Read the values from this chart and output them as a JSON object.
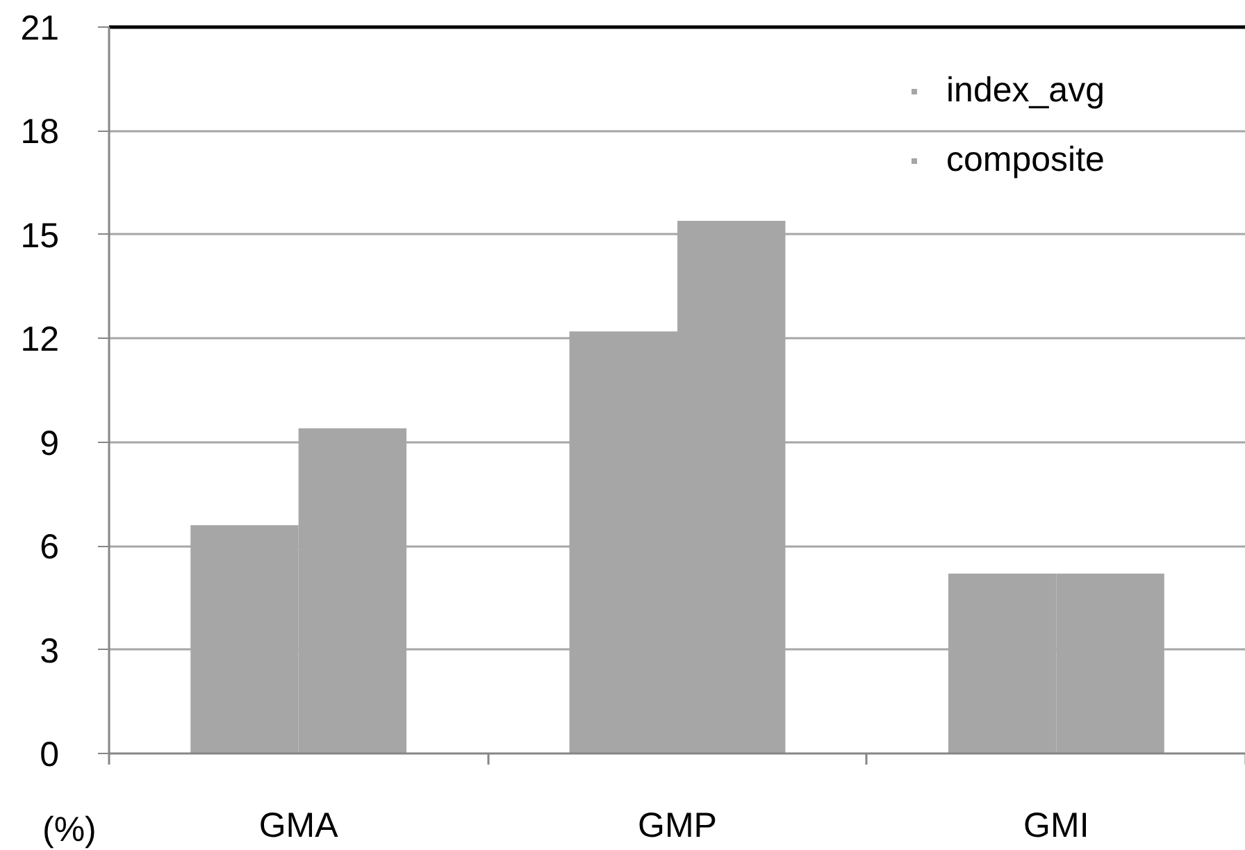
{
  "chart_data": {
    "type": "bar",
    "ylabel": "(%)",
    "categories": [
      "GMA",
      "GMP",
      "GMI"
    ],
    "series": [
      {
        "name": "index_avg",
        "color": "#a6a6a6",
        "values": [
          6.6,
          12.2,
          5.2
        ]
      },
      {
        "name": "composite",
        "color": "#a6a6a6",
        "values": [
          9.4,
          15.4,
          5.2
        ]
      }
    ],
    "ylim": [
      0,
      21
    ],
    "yticks": [
      0,
      3,
      6,
      9,
      12,
      15,
      18,
      21
    ],
    "grid": "y",
    "legend": "top right"
  }
}
